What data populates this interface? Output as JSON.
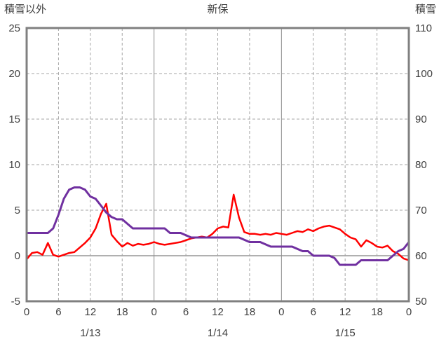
{
  "chart_data": {
    "type": "line",
    "title": "新保",
    "hours_total": 72,
    "sampling": "hourly (index = hours since 1/13 00:00)",
    "left_axis": {
      "title": "積雪以外",
      "min": -5,
      "max": 25,
      "ticks": [
        -5,
        0,
        5,
        10,
        15,
        20,
        25
      ]
    },
    "right_axis": {
      "title": "積雪",
      "min": 50,
      "max": 110,
      "ticks": [
        50,
        60,
        70,
        80,
        90,
        100,
        110
      ]
    },
    "x_axis": {
      "tick_every_hours": 6,
      "tick_labels": [
        "0",
        "6",
        "12",
        "18",
        "0",
        "6",
        "12",
        "18",
        "0",
        "6",
        "12",
        "18",
        "0"
      ],
      "day_labels": [
        "1/13",
        "1/14",
        "1/15"
      ]
    },
    "grid": {
      "h_dashed_at_left": [
        5,
        10,
        15,
        20
      ],
      "zero_line_at_left": 0,
      "v_dashed_hours": [
        6,
        12,
        18,
        30,
        36,
        42,
        54,
        60,
        66
      ],
      "v_solid_hours": [
        24,
        48
      ]
    },
    "colors": {
      "red_series": "#FF0000",
      "purple_series": "#7030A0",
      "border": "#808080",
      "grid_dashed": "#A6A6A6",
      "grid_solid": "#8C8C8C",
      "zero_line": "#808080",
      "label_text": "#404040",
      "background": "#FFFFFF"
    },
    "series": [
      {
        "name": "積雪以外",
        "axis": "left",
        "color": "#FF0000",
        "width": 2.5,
        "values": [
          -0.4,
          0.3,
          0.4,
          0.1,
          1.4,
          0.1,
          -0.1,
          0.1,
          0.3,
          0.4,
          0.9,
          1.4,
          2.0,
          3.0,
          4.6,
          5.7,
          2.3,
          1.6,
          1.0,
          1.4,
          1.1,
          1.3,
          1.2,
          1.3,
          1.5,
          1.3,
          1.2,
          1.3,
          1.4,
          1.5,
          1.7,
          1.9,
          2.0,
          2.1,
          2.0,
          2.4,
          3.0,
          3.2,
          3.1,
          6.7,
          4.2,
          2.6,
          2.4,
          2.4,
          2.3,
          2.4,
          2.3,
          2.5,
          2.4,
          2.3,
          2.5,
          2.7,
          2.6,
          2.9,
          2.7,
          3.0,
          3.2,
          3.3,
          3.1,
          2.9,
          2.4,
          2.0,
          1.8,
          1.0,
          1.7,
          1.4,
          1.0,
          0.9,
          1.1,
          0.5,
          0.2,
          -0.3,
          -0.5
        ]
      },
      {
        "name": "積雪",
        "axis": "right",
        "color": "#7030A0",
        "width": 3,
        "values": [
          65,
          65,
          65,
          65,
          65,
          66,
          69,
          72.5,
          74.5,
          75,
          75,
          74.5,
          73,
          72.5,
          71,
          69.5,
          68.5,
          68,
          68,
          67,
          66,
          66,
          66,
          66,
          66,
          66,
          66,
          65,
          65,
          65,
          64.5,
          64,
          64,
          64,
          64,
          64,
          64,
          64,
          64,
          64,
          64,
          63.5,
          63,
          63,
          63,
          62.5,
          62,
          62,
          62,
          62,
          62,
          61.5,
          61,
          61,
          60,
          60,
          60,
          60,
          59.5,
          58,
          58,
          58,
          58,
          59,
          59,
          59,
          59,
          59,
          59,
          60,
          61,
          61.5,
          63
        ]
      }
    ]
  }
}
